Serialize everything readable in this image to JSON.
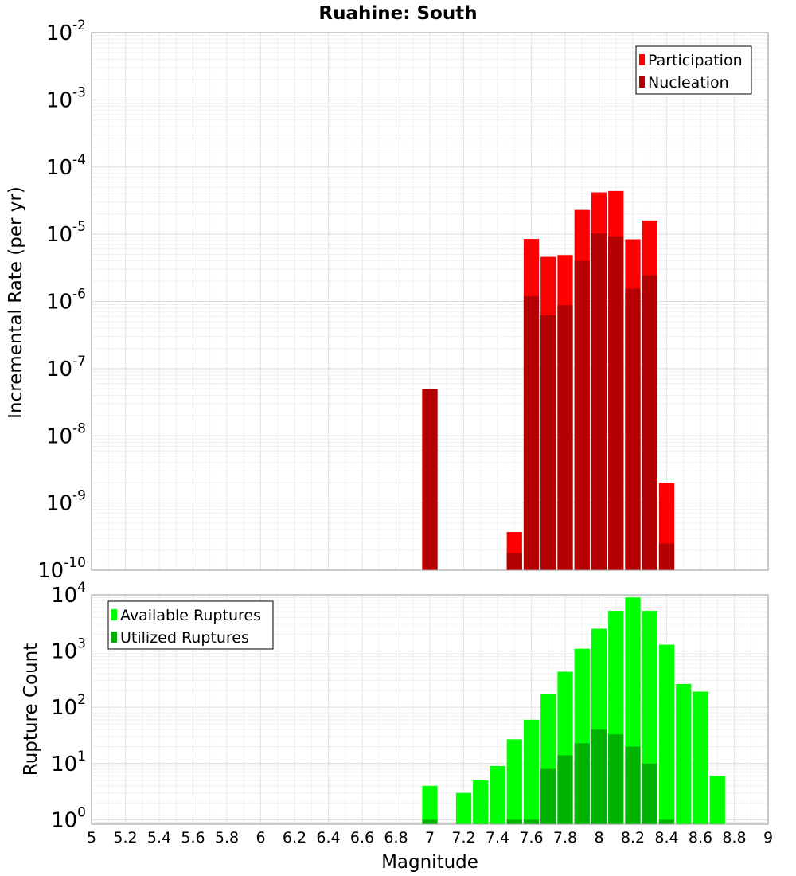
{
  "chart_data": [
    {
      "type": "bar",
      "title": "Ruahine: South",
      "ylabel": "Incremental Rate (per yr)",
      "xlabel": "",
      "yscale": "log",
      "ylim_exp": [
        -10,
        -2
      ],
      "xlim": [
        5,
        9
      ],
      "bin_width": 0.1,
      "grid": true,
      "legend_position": "top-right",
      "series": [
        {
          "name": "Participation",
          "color": "#ff0000",
          "points": [
            [
              7.0,
              5e-08
            ],
            [
              7.5,
              3.7e-10
            ],
            [
              7.6,
              8.5e-06
            ],
            [
              7.7,
              4.6e-06
            ],
            [
              7.8,
              4.9e-06
            ],
            [
              7.9,
              2.3e-05
            ],
            [
              8.0,
              4.2e-05
            ],
            [
              8.1,
              4.4e-05
            ],
            [
              8.2,
              8.4e-06
            ],
            [
              8.3,
              1.6e-05
            ],
            [
              8.4,
              2e-09
            ]
          ]
        },
        {
          "name": "Nucleation",
          "color": "#b30000",
          "points": [
            [
              7.0,
              5e-08
            ],
            [
              7.5,
              1.8e-10
            ],
            [
              7.6,
              1.2e-06
            ],
            [
              7.7,
              6.2e-07
            ],
            [
              7.8,
              8.8e-07
            ],
            [
              7.9,
              4e-06
            ],
            [
              8.0,
              1.03e-05
            ],
            [
              8.1,
              9.3e-06
            ],
            [
              8.2,
              1.55e-06
            ],
            [
              8.3,
              2.45e-06
            ],
            [
              8.4,
              2.5e-10
            ]
          ]
        }
      ]
    },
    {
      "type": "bar",
      "title": "",
      "ylabel": "Rupture Count",
      "xlabel": "Magnitude",
      "yscale": "log",
      "ylim_exp": [
        -0.08,
        4
      ],
      "xlim": [
        5,
        9
      ],
      "bin_width": 0.1,
      "grid": true,
      "legend_position": "top-left",
      "x_ticks": [
        5,
        5.2,
        5.4,
        5.6,
        5.8,
        6,
        6.2,
        6.4,
        6.6,
        6.8,
        7,
        7.2,
        7.4,
        7.6,
        7.8,
        8,
        8.2,
        8.4,
        8.6,
        8.8,
        9
      ],
      "x_tick_labels": [
        "5",
        "5.2",
        "5.4",
        "5.6",
        "5.8",
        "6",
        "6.2",
        "6.4",
        "6.6",
        "6.8",
        "7",
        "7.2",
        "7.4",
        "7.6",
        "7.8",
        "8",
        "8.2",
        "8.4",
        "8.6",
        "8.8",
        "9"
      ],
      "series": [
        {
          "name": "Available Ruptures",
          "color": "#00ff00",
          "points": [
            [
              7.0,
              4
            ],
            [
              7.2,
              3
            ],
            [
              7.3,
              5
            ],
            [
              7.4,
              9
            ],
            [
              7.5,
              27
            ],
            [
              7.6,
              60
            ],
            [
              7.7,
              170
            ],
            [
              7.8,
              430
            ],
            [
              7.9,
              1100
            ],
            [
              8.0,
              2500
            ],
            [
              8.1,
              5200
            ],
            [
              8.2,
              9000
            ],
            [
              8.3,
              5200
            ],
            [
              8.4,
              1300
            ],
            [
              8.5,
              260
            ],
            [
              8.6,
              190
            ],
            [
              8.7,
              6
            ]
          ]
        },
        {
          "name": "Utilized Ruptures",
          "color": "#00b300",
          "points": [
            [
              7.0,
              1
            ],
            [
              7.5,
              1
            ],
            [
              7.6,
              1
            ],
            [
              7.7,
              8
            ],
            [
              7.8,
              14
            ],
            [
              7.9,
              23
            ],
            [
              8.0,
              40
            ],
            [
              8.1,
              33
            ],
            [
              8.2,
              20
            ],
            [
              8.3,
              10
            ],
            [
              8.4,
              1
            ]
          ]
        }
      ]
    }
  ]
}
